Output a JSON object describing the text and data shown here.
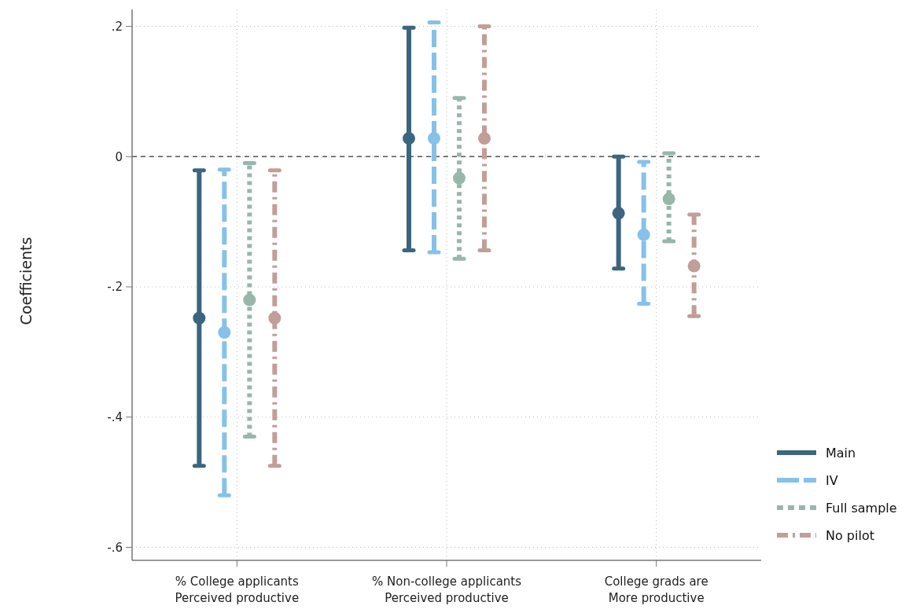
{
  "chart_data": {
    "type": "scatter",
    "ylabel": "Coefficients",
    "categories": [
      "% College applicants\nPerceived productive",
      "% Non-college applicants\nPerceived productive",
      "College grads are\nMore productive"
    ],
    "series": [
      {
        "name": "Main",
        "color": "#3b6580",
        "line_style": "solid",
        "values": [
          -0.248,
          0.028,
          -0.087
        ],
        "errors": [
          [
            -0.475,
            -0.021
          ],
          [
            -0.144,
            0.198
          ],
          [
            -0.172,
            0
          ]
        ]
      },
      {
        "name": "IV",
        "color": "#86c1ea",
        "line_style": "dashed",
        "values": [
          -0.27,
          0.028,
          -0.12
        ],
        "errors": [
          [
            -0.52,
            -0.02
          ],
          [
            -0.147,
            0.206
          ],
          [
            -0.226,
            -0.008
          ]
        ]
      },
      {
        "name": "Full sample",
        "color": "#97b7aa",
        "line_style": "dotted",
        "values": [
          -0.22,
          -0.033,
          -0.065
        ],
        "errors": [
          [
            -0.43,
            -0.01
          ],
          [
            -0.157,
            0.09
          ],
          [
            -0.13,
            0.005
          ]
        ]
      },
      {
        "name": "No pilot",
        "color": "#c29e98",
        "line_style": "dashdot",
        "values": [
          -0.248,
          0.028,
          -0.168
        ],
        "errors": [
          [
            -0.475,
            -0.021
          ],
          [
            -0.144,
            0.2
          ],
          [
            -0.245,
            -0.089
          ]
        ]
      }
    ],
    "ylim": [
      -0.62,
      0.226
    ],
    "yticks": [
      {
        "value": 0.2,
        "label": ".2"
      },
      0,
      {
        "value": -0.2,
        "label": "-.2"
      },
      {
        "value": -0.4,
        "label": "-.4"
      },
      {
        "value": -0.6,
        "label": "-.6"
      }
    ],
    "ref_lines": [
      {
        "axis": "y",
        "value": 0,
        "line_style": "dashed",
        "color": "#555555"
      }
    ],
    "grid": true,
    "legend": "bottom right",
    "marker": "circle"
  }
}
